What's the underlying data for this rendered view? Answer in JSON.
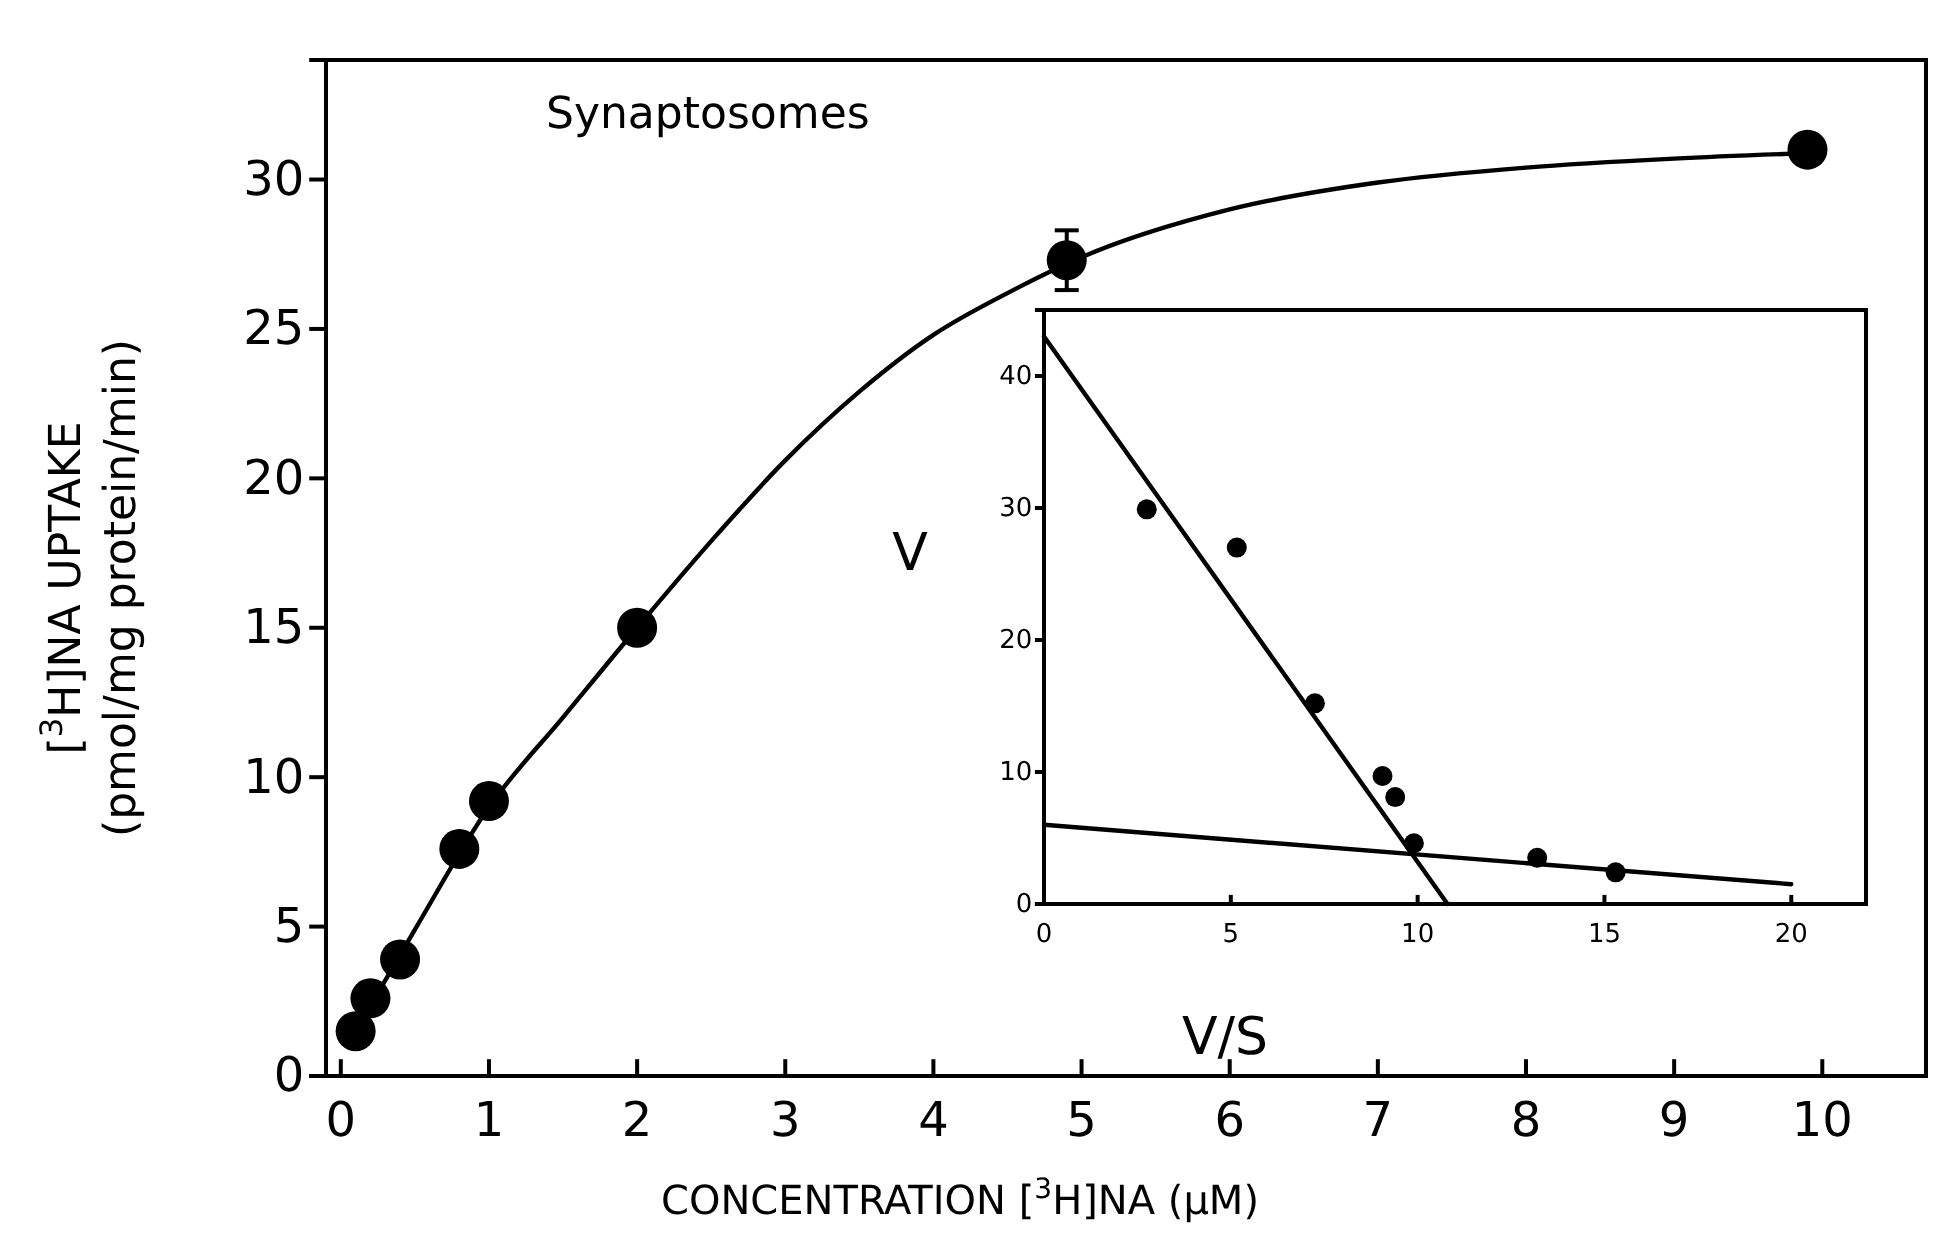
{
  "chart_data": [
    {
      "type": "scatter",
      "title": "Synaptosomes",
      "xlabel": "CONCENTRATION [$^{3}$H]NA (μM)",
      "ylabel": "[$^{3}$H]NA UPTAKE\n(pmol/mg protein/min)",
      "xlim": [
        -0.1,
        10.7
      ],
      "xticks": [
        0,
        1,
        2,
        3,
        4,
        5,
        6,
        7,
        8,
        9,
        10
      ],
      "ylim": [
        0,
        34
      ],
      "yticks": [
        0,
        5,
        10,
        15,
        20,
        25,
        30
      ],
      "grid": false,
      "series": [
        {
          "marker": "circle",
          "color": "#000000",
          "x": [
            0.1,
            0.2,
            0.4,
            0.8,
            1.0,
            2.0,
            4.9,
            9.9
          ],
          "values": [
            1.5,
            2.6,
            3.9,
            7.6,
            9.2,
            15,
            27.3,
            31
          ],
          "errors": [
            null,
            null,
            null,
            null,
            null,
            null,
            1,
            null
          ]
        },
        {
          "type": "line",
          "color": "#000000",
          "x": [
            0.1,
            0.5,
            1,
            1.5,
            2,
            2.5,
            3,
            3.5,
            4,
            4.5,
            5,
            6,
            7,
            8,
            9,
            10
          ],
          "values": [
            1.5,
            4.9,
            9,
            12,
            15,
            17.9,
            20.6,
            22.9,
            24.8,
            26.2,
            27.4,
            29,
            29.9,
            30.4,
            30.7,
            30.9
          ]
        }
      ]
    },
    {
      "type": "scatter",
      "xlabel": "V/S",
      "ylabel": "V",
      "xlim": [
        0,
        22
      ],
      "xticks": [
        0,
        5,
        10,
        15,
        20
      ],
      "ylim": [
        0,
        45
      ],
      "yticks": [
        0,
        10,
        20,
        30,
        40
      ],
      "grid": false,
      "series": [
        {
          "marker": "circle",
          "color": "#000000",
          "x": [
            2.75,
            5.16,
            7.25,
            9.06,
            9.4,
            9.9,
            13.2,
            15.3
          ],
          "values": [
            29.9,
            27,
            15.2,
            9.7,
            8.1,
            4.6,
            3.5,
            2.4
          ]
        },
        {
          "type": "line",
          "color": "#000000",
          "x": [
            0,
            10.8
          ],
          "values": [
            43,
            0
          ]
        },
        {
          "type": "line",
          "color": "#000000",
          "x": [
            0,
            20
          ],
          "values": [
            6,
            1.5
          ]
        }
      ]
    }
  ]
}
